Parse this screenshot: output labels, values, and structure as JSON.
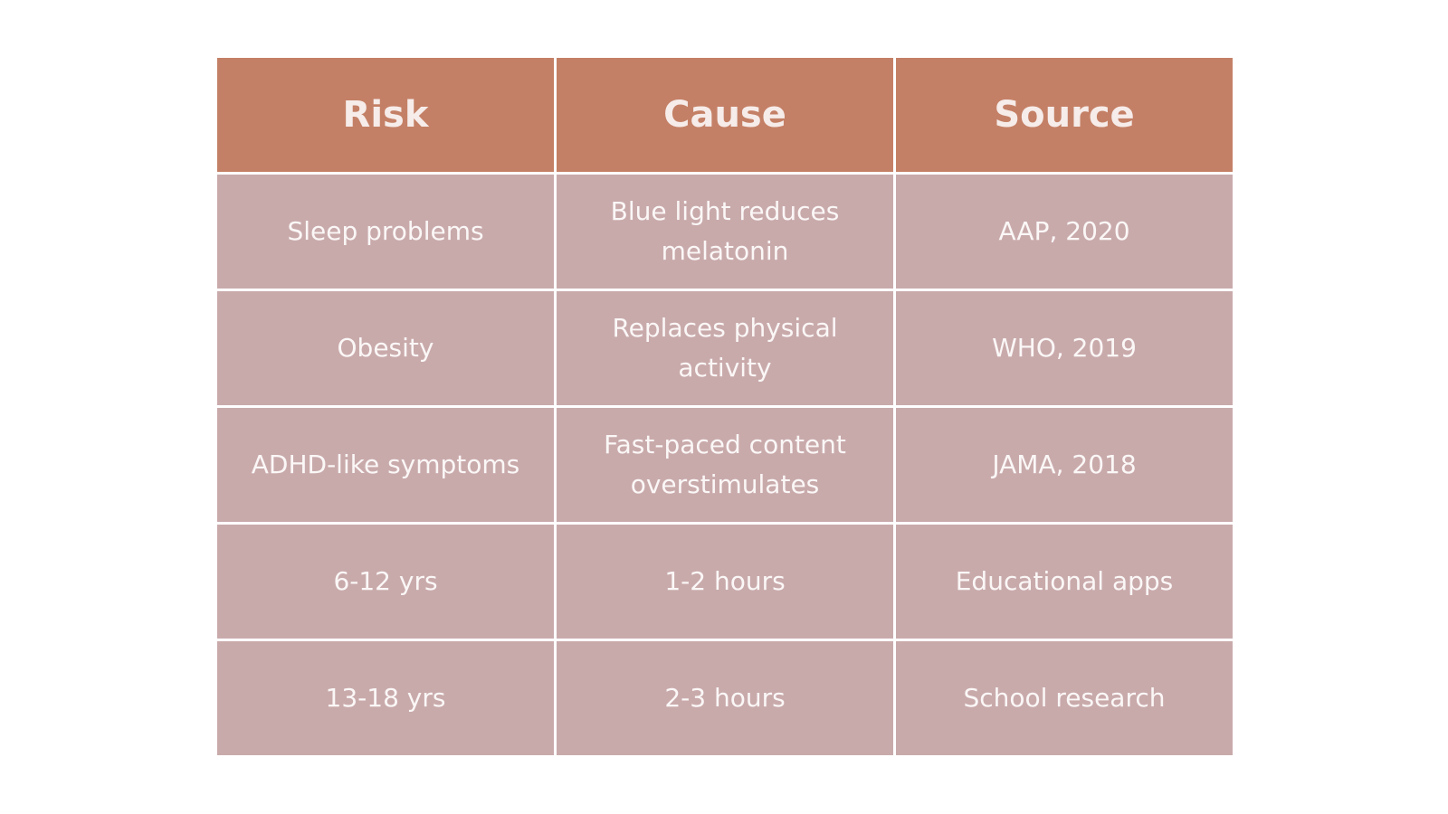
{
  "table": {
    "headers": [
      "Risk",
      "Cause",
      "Source"
    ],
    "rows": [
      [
        "Sleep problems",
        "Blue light reduces melatonin",
        "AAP, 2020"
      ],
      [
        "Obesity",
        "Replaces physical activity",
        "WHO, 2019"
      ],
      [
        "ADHD-like symptoms",
        "Fast-paced content overstimulates",
        "JAMA, 2018"
      ],
      [
        "6-12 yrs",
        "1-2 hours",
        "Educational apps"
      ],
      [
        "13-18 yrs",
        "2-3 hours",
        "School research"
      ]
    ]
  },
  "colors": {
    "header_bg": "#c48066",
    "cell_bg": "#c9aaab",
    "text": "#ffffff"
  }
}
